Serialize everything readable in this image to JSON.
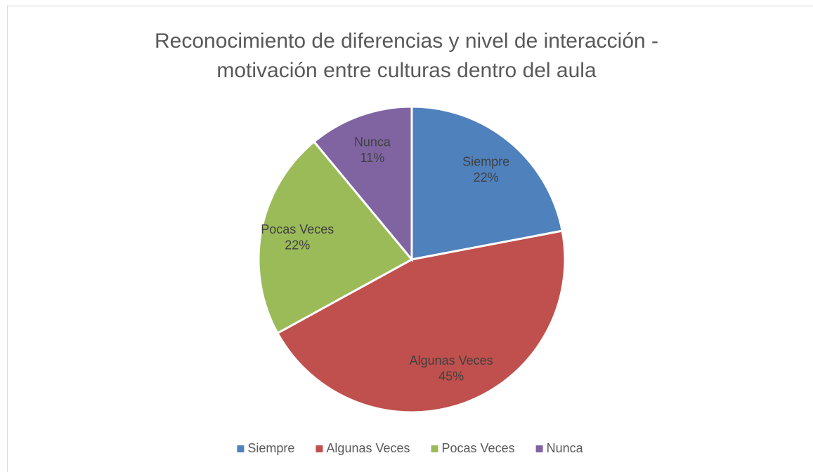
{
  "chart_data": {
    "type": "pie",
    "title": "Reconocimiento de diferencias y nivel de interacción - motivación entre culturas dentro del aula",
    "categories": [
      "Siempre",
      "Algunas Veces",
      "Pocas Veces",
      "Nunca"
    ],
    "values": [
      22,
      45,
      22,
      11
    ],
    "value_labels": [
      "22%",
      "45%",
      "22%",
      "11%"
    ],
    "colors": [
      "#4f81bd",
      "#c0504d",
      "#9bbb59",
      "#8064a2"
    ],
    "legend": "bottom"
  }
}
